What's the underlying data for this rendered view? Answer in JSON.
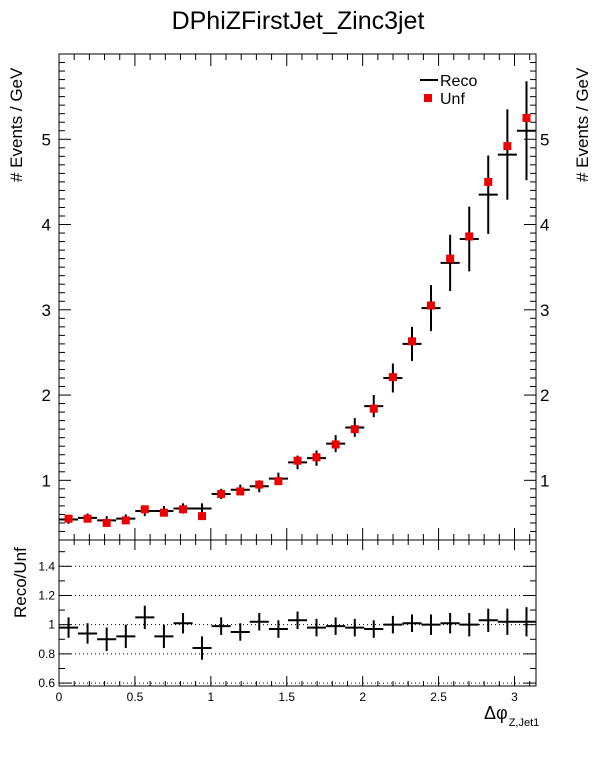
{
  "title": "DPhiZFirstJet_Zinc3jet",
  "chart_data": [
    {
      "type": "scatter",
      "panel": "main",
      "ylabel": "# Events / GeV",
      "xlabel": "",
      "xlim": [
        0,
        3.1416
      ],
      "ylim": [
        0.3,
        6.0
      ],
      "yticks": [
        1,
        2,
        3,
        4,
        5
      ],
      "grid": false,
      "legend_position": "top-right",
      "legend": [
        {
          "name": "Reco",
          "marker": "line"
        },
        {
          "name": "Unf",
          "marker": "square"
        }
      ],
      "x_bin_width": 0.1257,
      "x": [
        0.063,
        0.188,
        0.314,
        0.44,
        0.565,
        0.691,
        0.817,
        0.942,
        1.068,
        1.194,
        1.319,
        1.445,
        1.571,
        1.696,
        1.822,
        1.948,
        2.073,
        2.199,
        2.325,
        2.45,
        2.576,
        2.702,
        2.827,
        2.953,
        3.079
      ],
      "series": [
        {
          "name": "Reco",
          "color": "#000000",
          "values": [
            0.54,
            0.56,
            0.53,
            0.55,
            0.64,
            0.64,
            0.67,
            0.67,
            0.84,
            0.89,
            0.93,
            1.02,
            1.21,
            1.26,
            1.43,
            1.62,
            1.87,
            2.2,
            2.6,
            3.02,
            3.55,
            3.83,
            4.35,
            4.82,
            5.1
          ],
          "errors": [
            0.05,
            0.05,
            0.05,
            0.05,
            0.06,
            0.06,
            0.06,
            0.06,
            0.06,
            0.06,
            0.07,
            0.07,
            0.08,
            0.09,
            0.1,
            0.11,
            0.13,
            0.17,
            0.2,
            0.27,
            0.33,
            0.38,
            0.46,
            0.53,
            0.58
          ]
        },
        {
          "name": "Unf",
          "color": "#ee0000",
          "values": [
            0.55,
            0.55,
            0.5,
            0.53,
            0.66,
            0.62,
            0.66,
            0.58,
            0.84,
            0.87,
            0.95,
            0.99,
            1.23,
            1.27,
            1.42,
            1.6,
            1.84,
            2.21,
            2.63,
            3.05,
            3.6,
            3.86,
            4.5,
            4.92,
            5.25
          ]
        }
      ]
    },
    {
      "type": "scatter",
      "panel": "ratio",
      "ylabel": "Reco/Unf",
      "xlabel": "Δφ",
      "xlabel_subscript": "Z,Jet1",
      "xlim": [
        0,
        3.1416
      ],
      "ylim": [
        0.58,
        1.58
      ],
      "xticks": [
        "0",
        "0.5",
        "1",
        "1.5",
        "2",
        "2.5",
        "3"
      ],
      "xtick_values": [
        0,
        0.5,
        1,
        1.5,
        2,
        2.5,
        3
      ],
      "yticks": [
        "0.6",
        "0.8",
        "1",
        "1.2",
        "1.4"
      ],
      "ytick_values": [
        0.6,
        0.8,
        1.0,
        1.2,
        1.4
      ],
      "grid": true,
      "x_bin_width": 0.1257,
      "x": [
        0.063,
        0.188,
        0.314,
        0.44,
        0.565,
        0.691,
        0.817,
        0.942,
        1.068,
        1.194,
        1.319,
        1.445,
        1.571,
        1.696,
        1.822,
        1.948,
        2.073,
        2.199,
        2.325,
        2.45,
        2.576,
        2.702,
        2.827,
        2.953,
        3.079
      ],
      "series": [
        {
          "name": "Reco/Unf",
          "color": "#000000",
          "values": [
            0.98,
            0.94,
            0.9,
            0.92,
            1.05,
            0.92,
            1.01,
            0.84,
            0.99,
            0.95,
            1.02,
            0.97,
            1.03,
            0.98,
            0.99,
            0.98,
            0.97,
            1.0,
            1.01,
            1.0,
            1.01,
            1.0,
            1.03,
            1.02,
            1.02
          ],
          "errors": [
            0.07,
            0.07,
            0.08,
            0.08,
            0.08,
            0.08,
            0.07,
            0.08,
            0.06,
            0.06,
            0.06,
            0.06,
            0.06,
            0.06,
            0.06,
            0.06,
            0.06,
            0.06,
            0.06,
            0.07,
            0.07,
            0.08,
            0.08,
            0.09,
            0.1
          ]
        }
      ]
    }
  ]
}
